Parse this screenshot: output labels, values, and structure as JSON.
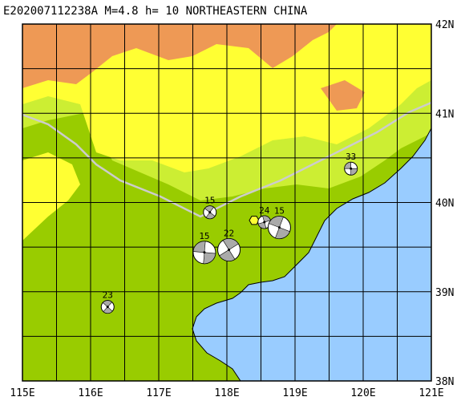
{
  "title": "E202007112238A M=4.8 h= 10 NORTHEASTERN CHINA",
  "colors": {
    "lowland": "#99cc00",
    "midland": "#ccee33",
    "upland": "#ffff33",
    "highland": "#ee9955",
    "sea": "#99ccff",
    "grid": "#000000",
    "border": "#cccccc",
    "event_marker": "#ffff33"
  },
  "axes": {
    "lon_labels": [
      "115E",
      "116E",
      "117E",
      "118E",
      "119E",
      "120E",
      "121E"
    ],
    "lat_labels": [
      "38N",
      "39N",
      "40N",
      "41N",
      "42N"
    ],
    "lon_range": [
      115,
      121
    ],
    "lat_range": [
      38,
      42
    ]
  },
  "epicenter": {
    "lon": 118.4,
    "lat": 39.8,
    "icon": "hexagon-star-icon"
  },
  "mechanisms": [
    {
      "label": "33",
      "lon": 119.82,
      "lat": 40.38,
      "size": "small"
    },
    {
      "label": "15",
      "lon": 117.75,
      "lat": 39.89,
      "size": "small"
    },
    {
      "label": "24",
      "lon": 118.55,
      "lat": 39.78,
      "size": "small"
    },
    {
      "label": "15",
      "lon": 118.77,
      "lat": 39.72,
      "size": "large"
    },
    {
      "label": "22",
      "lon": 118.03,
      "lat": 39.47,
      "size": "large"
    },
    {
      "label": "15",
      "lon": 117.67,
      "lat": 39.44,
      "size": "large"
    },
    {
      "label": "23",
      "lon": 116.25,
      "lat": 38.83,
      "size": "small"
    }
  ]
}
